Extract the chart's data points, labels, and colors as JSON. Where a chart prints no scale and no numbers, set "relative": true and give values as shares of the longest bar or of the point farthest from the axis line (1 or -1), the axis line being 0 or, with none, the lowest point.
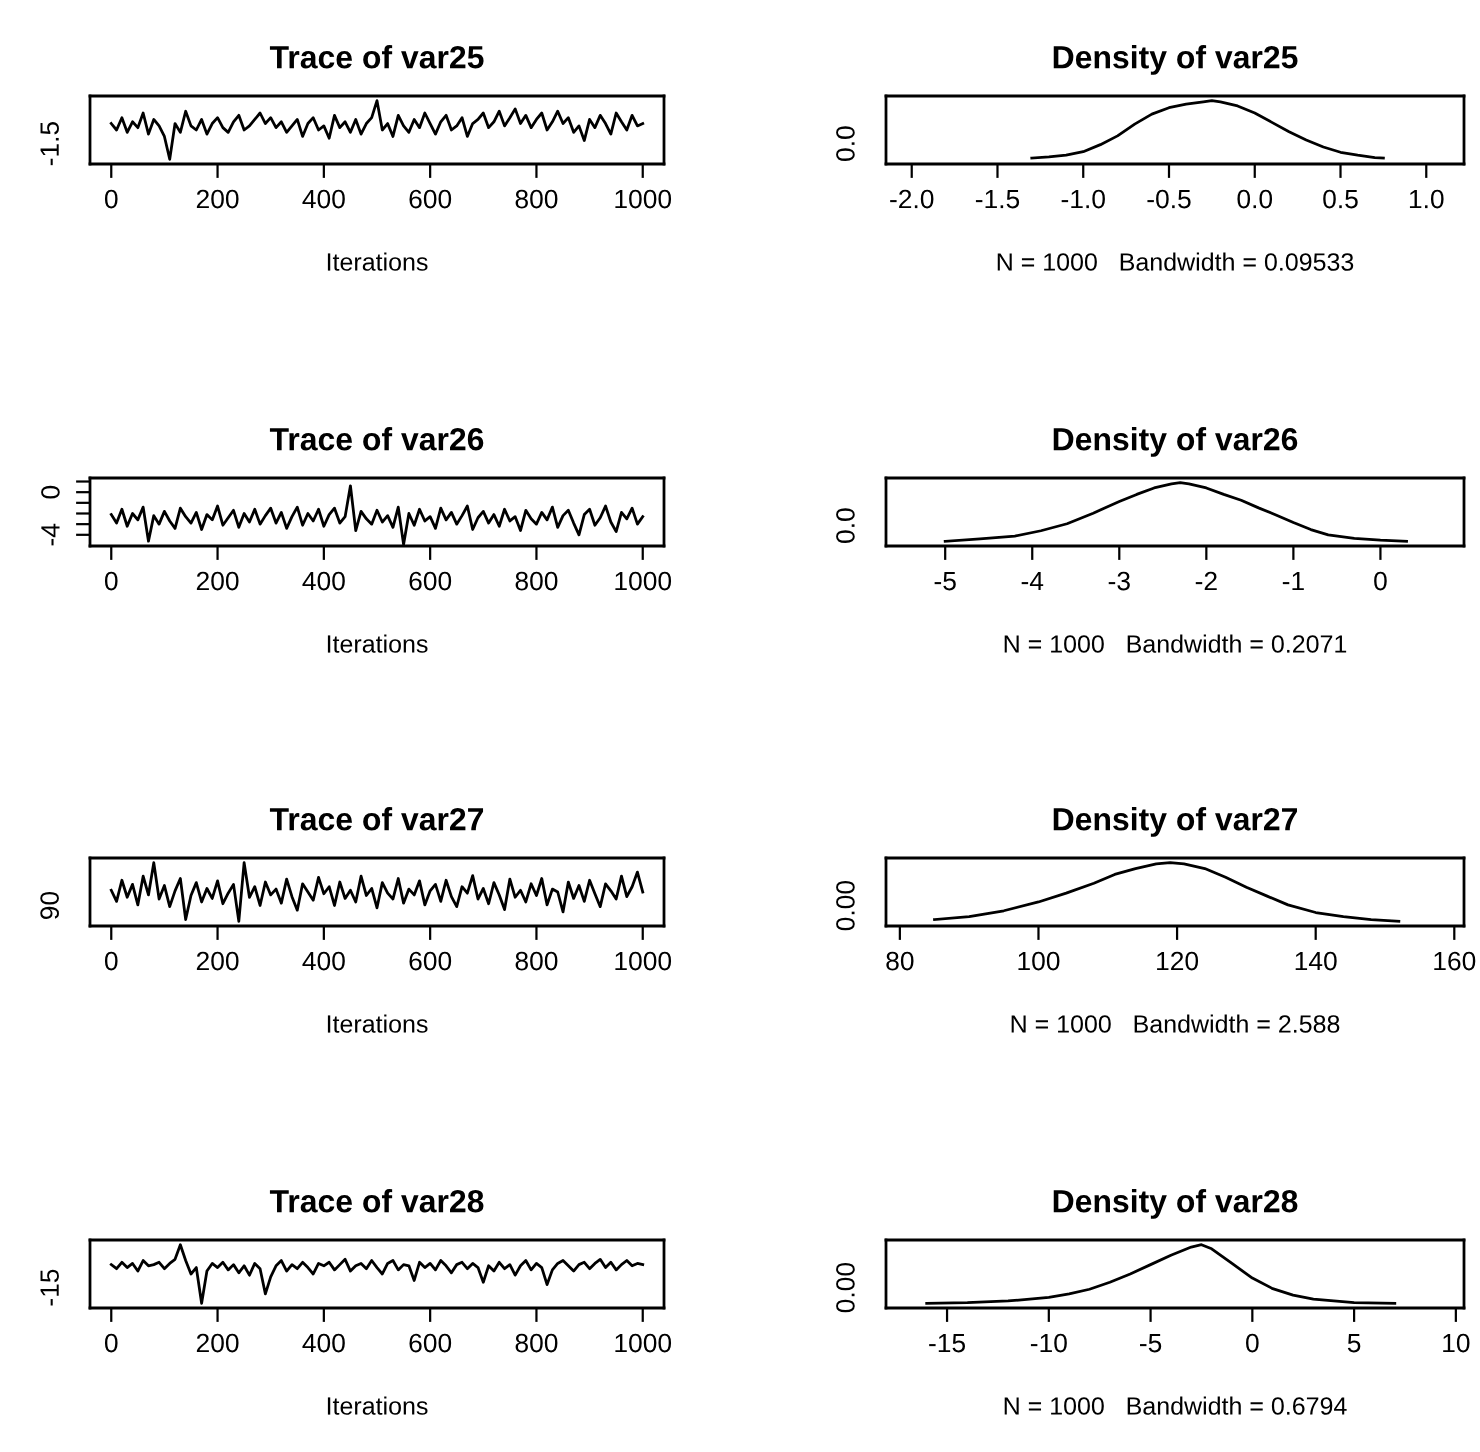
{
  "chart_data": [
    {
      "type": "line",
      "title": "Trace of var25",
      "xlabel": "Iterations",
      "color": "#000000",
      "grid": false,
      "relative": true,
      "annotations": [
        "-1.5"
      ],
      "x": [
        0,
        10,
        20,
        30,
        40,
        50,
        60,
        70,
        80,
        90,
        100,
        110,
        120,
        130,
        140,
        150,
        160,
        170,
        180,
        190,
        200,
        210,
        220,
        230,
        240,
        250,
        260,
        270,
        280,
        290,
        300,
        310,
        320,
        330,
        340,
        350,
        360,
        370,
        380,
        390,
        400,
        410,
        420,
        430,
        440,
        450,
        460,
        470,
        480,
        490,
        500,
        510,
        520,
        530,
        540,
        550,
        560,
        570,
        580,
        590,
        600,
        610,
        620,
        630,
        640,
        650,
        660,
        670,
        680,
        690,
        700,
        710,
        720,
        730,
        740,
        750,
        760,
        770,
        780,
        790,
        800,
        810,
        820,
        830,
        840,
        850,
        860,
        870,
        880,
        890,
        900,
        910,
        920,
        930,
        940,
        950,
        960,
        970,
        980,
        990,
        1000
      ],
      "values": [
        0.61,
        0.5,
        0.71,
        0.46,
        0.64,
        0.54,
        0.79,
        0.43,
        0.68,
        0.57,
        0.39,
        0,
        0.61,
        0.46,
        0.82,
        0.57,
        0.5,
        0.68,
        0.43,
        0.61,
        0.71,
        0.54,
        0.46,
        0.64,
        0.75,
        0.5,
        0.57,
        0.68,
        0.79,
        0.61,
        0.71,
        0.54,
        0.64,
        0.46,
        0.57,
        0.68,
        0.39,
        0.61,
        0.71,
        0.5,
        0.57,
        0.36,
        0.75,
        0.54,
        0.64,
        0.46,
        0.68,
        0.43,
        0.61,
        0.71,
        1,
        0.5,
        0.61,
        0.39,
        0.75,
        0.57,
        0.46,
        0.68,
        0.54,
        0.79,
        0.61,
        0.43,
        0.64,
        0.75,
        0.5,
        0.57,
        0.71,
        0.39,
        0.61,
        0.68,
        0.79,
        0.54,
        0.64,
        0.82,
        0.57,
        0.71,
        0.86,
        0.61,
        0.75,
        0.54,
        0.68,
        0.79,
        0.5,
        0.64,
        0.82,
        0.61,
        0.71,
        0.46,
        0.57,
        0.32,
        0.68,
        0.54,
        0.75,
        0.61,
        0.43,
        0.79,
        0.64,
        0.5,
        0.75,
        0.57,
        0.61
      ],
      "xlim": [
        -40,
        1040
      ],
      "xticks": [
        0,
        200,
        400,
        600,
        800,
        1000
      ]
    },
    {
      "type": "line",
      "title": "Density of var25",
      "xlabel": "N = 1000   Bandwidth = 0.09533",
      "color": "#000000",
      "grid": false,
      "relative": true,
      "annotations": [
        "0.0"
      ],
      "x": [
        -1.3,
        -1.2,
        -1.1,
        -1.0,
        -0.9,
        -0.8,
        -0.7,
        -0.6,
        -0.5,
        -0.4,
        -0.3,
        -0.25,
        -0.2,
        -0.1,
        0.0,
        0.1,
        0.2,
        0.3,
        0.4,
        0.5,
        0.6,
        0.7,
        0.75
      ],
      "values": [
        0.02,
        0.04,
        0.07,
        0.13,
        0.25,
        0.4,
        0.6,
        0.77,
        0.88,
        0.94,
        0.98,
        1,
        0.98,
        0.91,
        0.79,
        0.63,
        0.47,
        0.33,
        0.21,
        0.12,
        0.07,
        0.03,
        0.02
      ],
      "xlim": [
        -2.15,
        1.22
      ],
      "xticks": [
        {
          "value": -2.0,
          "label": "-2.0"
        },
        -1.5,
        {
          "value": -1.0,
          "label": "-1.0"
        },
        -0.5,
        {
          "value": 0,
          "label": "0.0"
        },
        0.5,
        {
          "value": 1,
          "label": "1.0"
        }
      ]
    },
    {
      "type": "line",
      "title": "Trace of var26",
      "xlabel": "Iterations",
      "color": "#000000",
      "grid": false,
      "x": [
        0,
        10,
        20,
        30,
        40,
        50,
        60,
        70,
        80,
        90,
        100,
        110,
        120,
        130,
        140,
        150,
        160,
        170,
        180,
        190,
        200,
        210,
        220,
        230,
        240,
        250,
        260,
        270,
        280,
        290,
        300,
        310,
        320,
        330,
        340,
        350,
        360,
        370,
        380,
        390,
        400,
        410,
        420,
        430,
        440,
        450,
        460,
        470,
        480,
        490,
        500,
        510,
        520,
        530,
        540,
        550,
        560,
        570,
        580,
        590,
        600,
        610,
        620,
        630,
        640,
        650,
        660,
        670,
        680,
        690,
        700,
        710,
        720,
        730,
        740,
        750,
        760,
        770,
        780,
        790,
        800,
        810,
        820,
        830,
        840,
        850,
        860,
        870,
        880,
        890,
        900,
        910,
        920,
        930,
        940,
        950,
        960,
        970,
        980,
        990,
        1000
      ],
      "values": [
        -2.1,
        -2.9,
        -1.6,
        -3.2,
        -2.0,
        -2.6,
        -1.4,
        -4.6,
        -2.2,
        -3.0,
        -1.8,
        -2.7,
        -3.4,
        -1.5,
        -2.3,
        -2.9,
        -1.9,
        -3.5,
        -2.1,
        -2.6,
        -1.3,
        -3.1,
        -2.4,
        -1.7,
        -3.3,
        -2.0,
        -2.8,
        -1.6,
        -3.0,
        -2.2,
        -1.5,
        -2.9,
        -1.9,
        -3.4,
        -2.3,
        -1.4,
        -3.1,
        -2.0,
        -2.7,
        -1.6,
        -3.2,
        -2.1,
        -1.5,
        -2.9,
        -2.3,
        0.6,
        -3.6,
        -1.8,
        -2.5,
        -3.0,
        -1.7,
        -2.8,
        -2.2,
        -3.3,
        -1.4,
        -4.9,
        -2.0,
        -3.1,
        -1.6,
        -2.7,
        -2.3,
        -3.4,
        -1.5,
        -2.6,
        -1.9,
        -3.0,
        -2.2,
        -1.3,
        -3.5,
        -2.4,
        -1.8,
        -2.9,
        -2.1,
        -3.2,
        -1.6,
        -2.7,
        -2.3,
        -3.6,
        -1.7,
        -2.5,
        -3.0,
        -1.9,
        -2.6,
        -1.4,
        -3.3,
        -2.2,
        -1.7,
        -2.9,
        -4.0,
        -2.1,
        -1.6,
        -3.1,
        -2.4,
        -1.3,
        -2.8,
        -3.7,
        -1.9,
        -2.5,
        -1.5,
        -3.0,
        -2.3
      ],
      "xlim": [
        -40,
        1040
      ],
      "xticks": [
        0,
        200,
        400,
        600,
        800,
        1000
      ],
      "ylim": [
        -5.05,
        1.33
      ],
      "yticks": [
        {
          "value": 1,
          "label": null
        },
        0,
        {
          "value": -1,
          "label": null
        },
        {
          "value": -2,
          "label": null
        },
        {
          "value": -3,
          "label": null
        },
        -4
      ]
    },
    {
      "type": "line",
      "title": "Density of var26",
      "xlabel": "N = 1000   Bandwidth = 0.2071",
      "color": "#000000",
      "grid": false,
      "relative": true,
      "annotations": [
        "0.0"
      ],
      "x": [
        -5.0,
        -4.6,
        -4.2,
        -3.9,
        -3.6,
        -3.3,
        -3.0,
        -2.8,
        -2.6,
        -2.4,
        -2.3,
        -2.2,
        -2.0,
        -1.8,
        -1.6,
        -1.4,
        -1.2,
        -1.0,
        -0.8,
        -0.6,
        -0.3,
        0.0,
        0.3
      ],
      "values": [
        0,
        0.04,
        0.09,
        0.18,
        0.3,
        0.48,
        0.68,
        0.8,
        0.91,
        0.98,
        1,
        0.98,
        0.91,
        0.8,
        0.7,
        0.57,
        0.45,
        0.32,
        0.2,
        0.11,
        0.05,
        0.02,
        0
      ],
      "xlim": [
        -5.68,
        0.96
      ],
      "xticks": [
        -5,
        -4,
        -3,
        -2,
        -1,
        0
      ]
    },
    {
      "type": "line",
      "title": "Trace of var27",
      "xlabel": "Iterations",
      "color": "#000000",
      "grid": false,
      "relative": true,
      "annotations": [
        "90"
      ],
      "x": [
        0,
        10,
        20,
        30,
        40,
        50,
        60,
        70,
        80,
        90,
        100,
        110,
        120,
        130,
        140,
        150,
        160,
        170,
        180,
        190,
        200,
        210,
        220,
        230,
        240,
        250,
        260,
        270,
        280,
        290,
        300,
        310,
        320,
        330,
        340,
        350,
        360,
        370,
        380,
        390,
        400,
        410,
        420,
        430,
        440,
        450,
        460,
        470,
        480,
        490,
        500,
        510,
        520,
        530,
        540,
        550,
        560,
        570,
        580,
        590,
        600,
        610,
        620,
        630,
        640,
        650,
        660,
        670,
        680,
        690,
        700,
        710,
        720,
        730,
        740,
        750,
        760,
        770,
        780,
        790,
        800,
        810,
        820,
        830,
        840,
        850,
        860,
        870,
        880,
        890,
        900,
        910,
        920,
        930,
        940,
        950,
        960,
        970,
        980,
        990,
        1000
      ],
      "values": [
        0.53,
        0.34,
        0.7,
        0.41,
        0.63,
        0.28,
        0.77,
        0.45,
        1,
        0.38,
        0.61,
        0.25,
        0.52,
        0.73,
        0.03,
        0.44,
        0.66,
        0.33,
        0.56,
        0.39,
        0.69,
        0.3,
        0.48,
        0.63,
        0,
        1,
        0.41,
        0.59,
        0.27,
        0.67,
        0.45,
        0.55,
        0.31,
        0.72,
        0.42,
        0.19,
        0.64,
        0.5,
        0.36,
        0.75,
        0.47,
        0.59,
        0.27,
        0.67,
        0.39,
        0.53,
        0.33,
        0.77,
        0.44,
        0.56,
        0.23,
        0.66,
        0.48,
        0.38,
        0.73,
        0.31,
        0.55,
        0.45,
        0.69,
        0.28,
        0.52,
        0.63,
        0.34,
        0.7,
        0.42,
        0.25,
        0.59,
        0.48,
        0.78,
        0.38,
        0.56,
        0.3,
        0.66,
        0.45,
        0.2,
        0.72,
        0.41,
        0.53,
        0.33,
        0.64,
        0.44,
        0.73,
        0.28,
        0.55,
        0.5,
        0.16,
        0.67,
        0.39,
        0.61,
        0.34,
        0.7,
        0.47,
        0.25,
        0.64,
        0.52,
        0.38,
        0.77,
        0.42,
        0.59,
        0.84,
        0.5
      ],
      "xlim": [
        -40,
        1040
      ],
      "xticks": [
        0,
        200,
        400,
        600,
        800,
        1000
      ]
    },
    {
      "type": "line",
      "title": "Density of var27",
      "xlabel": "N = 1000   Bandwidth = 2.588",
      "color": "#000000",
      "grid": false,
      "relative": true,
      "annotations": [
        "0.00"
      ],
      "x": [
        85,
        90,
        95,
        100,
        104,
        108,
        111,
        114,
        117,
        119,
        121,
        124,
        127,
        130,
        133,
        136,
        140,
        144,
        148,
        152
      ],
      "values": [
        0.03,
        0.08,
        0.18,
        0.33,
        0.48,
        0.65,
        0.8,
        0.9,
        0.98,
        1,
        0.98,
        0.9,
        0.75,
        0.58,
        0.43,
        0.28,
        0.15,
        0.08,
        0.03,
        0
      ],
      "xlim": [
        78,
        161.4
      ],
      "xticks": [
        80,
        100,
        120,
        140,
        160
      ]
    },
    {
      "type": "line",
      "title": "Trace of var28",
      "xlabel": "Iterations",
      "color": "#000000",
      "grid": false,
      "relative": true,
      "annotations": [
        "-15"
      ],
      "x": [
        0,
        10,
        20,
        30,
        40,
        50,
        60,
        70,
        80,
        90,
        100,
        110,
        120,
        130,
        140,
        150,
        160,
        170,
        180,
        190,
        200,
        210,
        220,
        230,
        240,
        250,
        260,
        270,
        280,
        290,
        300,
        310,
        320,
        330,
        340,
        350,
        360,
        370,
        380,
        390,
        400,
        410,
        420,
        430,
        440,
        450,
        460,
        470,
        480,
        490,
        500,
        510,
        520,
        530,
        540,
        550,
        560,
        570,
        580,
        590,
        600,
        610,
        620,
        630,
        640,
        650,
        660,
        670,
        680,
        690,
        700,
        710,
        720,
        730,
        740,
        750,
        760,
        770,
        780,
        790,
        800,
        810,
        820,
        830,
        840,
        850,
        860,
        870,
        880,
        890,
        900,
        910,
        920,
        930,
        940,
        950,
        960,
        970,
        980,
        990,
        1000
      ],
      "values": [
        0.66,
        0.59,
        0.7,
        0.61,
        0.68,
        0.55,
        0.73,
        0.64,
        0.66,
        0.7,
        0.59,
        0.68,
        0.75,
        1,
        0.73,
        0.5,
        0.61,
        0,
        0.55,
        0.68,
        0.61,
        0.7,
        0.57,
        0.66,
        0.52,
        0.64,
        0.48,
        0.68,
        0.59,
        0.16,
        0.45,
        0.64,
        0.73,
        0.55,
        0.66,
        0.59,
        0.7,
        0.61,
        0.5,
        0.68,
        0.64,
        0.7,
        0.57,
        0.66,
        0.75,
        0.55,
        0.64,
        0.68,
        0.59,
        0.73,
        0.61,
        0.5,
        0.68,
        0.73,
        0.57,
        0.66,
        0.64,
        0.39,
        0.7,
        0.61,
        0.68,
        0.57,
        0.73,
        0.64,
        0.52,
        0.66,
        0.7,
        0.59,
        0.68,
        0.61,
        0.36,
        0.64,
        0.55,
        0.7,
        0.59,
        0.66,
        0.48,
        0.64,
        0.73,
        0.57,
        0.68,
        0.61,
        0.32,
        0.57,
        0.68,
        0.73,
        0.64,
        0.55,
        0.66,
        0.7,
        0.59,
        0.68,
        0.75,
        0.61,
        0.7,
        0.57,
        0.66,
        0.73,
        0.64,
        0.68,
        0.66
      ],
      "xlim": [
        -40,
        1040
      ],
      "xticks": [
        0,
        200,
        400,
        600,
        800,
        1000
      ]
    },
    {
      "type": "line",
      "title": "Density of var28",
      "xlabel": "N = 1000   Bandwidth = 0.6794",
      "color": "#000000",
      "grid": false,
      "relative": true,
      "annotations": [
        "0.00"
      ],
      "x": [
        -16,
        -14,
        -12,
        -10,
        -9,
        -8,
        -7,
        -6,
        -5,
        -4,
        -3,
        -2.5,
        -2,
        -1,
        0,
        1,
        2,
        3,
        4,
        5,
        7
      ],
      "values": [
        0,
        0.01,
        0.04,
        0.1,
        0.16,
        0.24,
        0.36,
        0.5,
        0.66,
        0.82,
        0.96,
        1,
        0.93,
        0.68,
        0.43,
        0.25,
        0.14,
        0.07,
        0.04,
        0.01,
        0
      ],
      "xlim": [
        -18,
        10.4
      ],
      "xticks": [
        -15,
        -10,
        -5,
        0,
        5,
        10
      ]
    }
  ]
}
